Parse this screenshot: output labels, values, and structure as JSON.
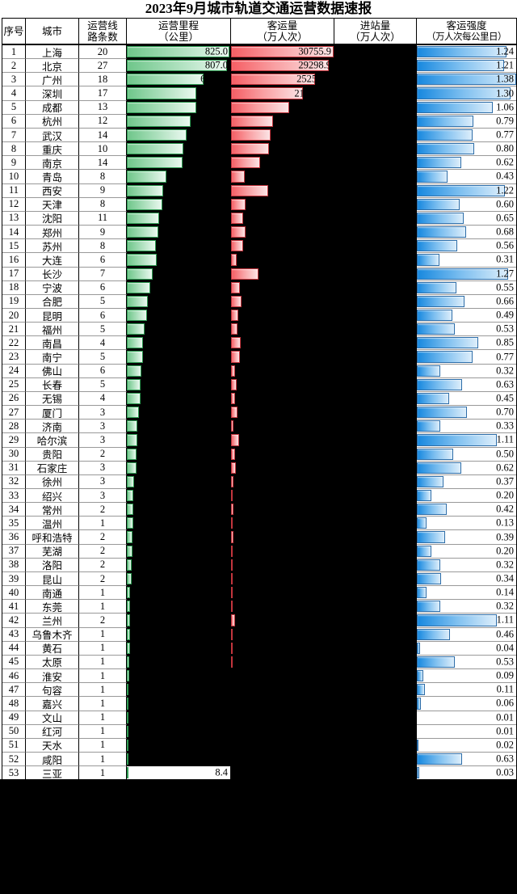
{
  "title": "2023年9月城市轨道交通运营数据速报",
  "columns": [
    {
      "l1": "序号",
      "l2": ""
    },
    {
      "l1": "城市",
      "l2": ""
    },
    {
      "l1": "运营线",
      "l2": "路条数"
    },
    {
      "l1": "运营里程",
      "l2": "（公里）"
    },
    {
      "l1": "客运量",
      "l2": "（万人次）"
    },
    {
      "l1": "进站量",
      "l2": "（万人次）"
    },
    {
      "l1": "客运强度",
      "l2": "（万人次每公里日）"
    }
  ],
  "colors": {
    "green_bar": "#6fc68a",
    "green_border": "#2e9b52",
    "red_bar": "#f55e64",
    "red_border": "#c2353d",
    "blue_bar": "#1788df",
    "blue_border": "#2d6da8",
    "blackout": "#000000",
    "gridline": "#999999"
  },
  "chart_data": {
    "type": "table",
    "title": "2023年9月城市轨道交通运营数据速报",
    "notes_layout": "in-cell data bars; bar lengths are percent of column width; entries column and unused bar areas are blacked out",
    "bar_full_scale": {
      "mileage_label_at_full": "825.0",
      "passengers_label_at_full": "30755.9",
      "intensity_max": 1.38
    },
    "rows": [
      {
        "no": "1",
        "city": "上海",
        "lines": "20",
        "m": 99,
        "ml": "825.0",
        "mlp": "edge",
        "p": 100,
        "pl": "30755.9",
        "plp": "edge",
        "i": "1.24"
      },
      {
        "no": "2",
        "city": "北京",
        "lines": "27",
        "m": 97,
        "ml": "807.0",
        "mlp": "edge",
        "p": 95,
        "pl": "29298.9",
        "plp": "edge",
        "i": "1.21"
      },
      {
        "no": "3",
        "city": "广州",
        "lines": "18",
        "m": 74.5,
        "ml": "6",
        "mlp": "bar",
        "p": 82,
        "pl": "2525",
        "plp": "bar",
        "i": "1.38"
      },
      {
        "no": "4",
        "city": "深圳",
        "lines": "17",
        "m": 67,
        "p": 70,
        "pl": "21",
        "plp": "bar",
        "i": "1.30"
      },
      {
        "no": "5",
        "city": "成都",
        "lines": "13",
        "m": 66.8,
        "p": 57,
        "i": "1.06"
      },
      {
        "no": "6",
        "city": "杭州",
        "lines": "12",
        "m": 61.9,
        "p": 41,
        "i": "0.79"
      },
      {
        "no": "7",
        "city": "武汉",
        "lines": "14",
        "m": 58,
        "p": 38.5,
        "i": "0.77"
      },
      {
        "no": "8",
        "city": "重庆",
        "lines": "10",
        "m": 54.5,
        "p": 37,
        "i": "0.80"
      },
      {
        "no": "9",
        "city": "南京",
        "lines": "14",
        "m": 53.7,
        "p": 28.5,
        "i": "0.62"
      },
      {
        "no": "10",
        "city": "青岛",
        "lines": "8",
        "m": 38,
        "p": 13.7,
        "i": "0.43"
      },
      {
        "no": "11",
        "city": "西安",
        "lines": "9",
        "m": 35.4,
        "p": 36,
        "i": "1.22"
      },
      {
        "no": "12",
        "city": "天津",
        "lines": "8",
        "m": 34.4,
        "p": 14.5,
        "i": "0.60"
      },
      {
        "no": "13",
        "city": "沈阳",
        "lines": "11",
        "m": 31.6,
        "p": 12,
        "i": "0.65"
      },
      {
        "no": "14",
        "city": "郑州",
        "lines": "9",
        "m": 30.6,
        "p": 14.5,
        "i": "0.68"
      },
      {
        "no": "15",
        "city": "苏州",
        "lines": "8",
        "m": 28,
        "p": 11.5,
        "i": "0.56"
      },
      {
        "no": "16",
        "city": "大连",
        "lines": "6",
        "m": 29,
        "p": 5.3,
        "i": "0.31"
      },
      {
        "no": "17",
        "city": "长沙",
        "lines": "7",
        "m": 25.2,
        "p": 27,
        "i": "1.27"
      },
      {
        "no": "18",
        "city": "宁波",
        "lines": "6",
        "m": 22.4,
        "p": 8.5,
        "i": "0.55"
      },
      {
        "no": "19",
        "city": "合肥",
        "lines": "5",
        "m": 20.6,
        "p": 10.3,
        "i": "0.66"
      },
      {
        "no": "20",
        "city": "昆明",
        "lines": "6",
        "m": 19.9,
        "p": 7,
        "i": "0.49"
      },
      {
        "no": "21",
        "city": "福州",
        "lines": "5",
        "m": 17.4,
        "p": 6.3,
        "i": "0.53"
      },
      {
        "no": "22",
        "city": "南昌",
        "lines": "4",
        "m": 15.5,
        "p": 9.4,
        "i": "0.85"
      },
      {
        "no": "23",
        "city": "南宁",
        "lines": "5",
        "m": 15.4,
        "p": 8.3,
        "i": "0.77"
      },
      {
        "no": "24",
        "city": "佛山",
        "lines": "6",
        "m": 14,
        "p": 3.8,
        "i": "0.32"
      },
      {
        "no": "25",
        "city": "长春",
        "lines": "5",
        "m": 13,
        "p": 5.9,
        "i": "0.63"
      },
      {
        "no": "26",
        "city": "无锡",
        "lines": "4",
        "m": 13.3,
        "p": 4.3,
        "i": "0.45"
      },
      {
        "no": "27",
        "city": "厦门",
        "lines": "3",
        "m": 12,
        "p": 6,
        "i": "0.70"
      },
      {
        "no": "28",
        "city": "济南",
        "lines": "3",
        "m": 10.4,
        "p": 2.6,
        "i": "0.33"
      },
      {
        "no": "29",
        "city": "哈尔滨",
        "lines": "3",
        "m": 9.8,
        "p": 7.9,
        "i": "1.11"
      },
      {
        "no": "30",
        "city": "贵阳",
        "lines": "2",
        "m": 9.4,
        "p": 3.7,
        "i": "0.50"
      },
      {
        "no": "31",
        "city": "石家庄",
        "lines": "3",
        "m": 9.2,
        "p": 4.5,
        "i": "0.62"
      },
      {
        "no": "32",
        "city": "徐州",
        "lines": "3",
        "m": 7.4,
        "p": 2.5,
        "i": "0.37"
      },
      {
        "no": "33",
        "city": "绍兴",
        "lines": "3",
        "m": 6.4,
        "p": 1.2,
        "i": "0.20"
      },
      {
        "no": "34",
        "city": "常州",
        "lines": "2",
        "m": 6.3,
        "p": 2.2,
        "i": "0.42"
      },
      {
        "no": "35",
        "city": "温州",
        "lines": "1",
        "m": 6,
        "p": 0.8,
        "i": "0.13"
      },
      {
        "no": "36",
        "city": "呼和浩特",
        "lines": "2",
        "m": 5.7,
        "p": 2,
        "i": "0.39"
      },
      {
        "no": "37",
        "city": "芜湖",
        "lines": "2",
        "m": 5.1,
        "p": 1.1,
        "i": "0.20"
      },
      {
        "no": "38",
        "city": "洛阳",
        "lines": "2",
        "m": 5,
        "p": 1.5,
        "i": "0.32"
      },
      {
        "no": "39",
        "city": "昆山",
        "lines": "2",
        "m": 4.3,
        "p": 1.3,
        "i": "0.34"
      },
      {
        "no": "40",
        "city": "南通",
        "lines": "1",
        "m": 3.3,
        "p": 0.7,
        "i": "0.14"
      },
      {
        "no": "41",
        "city": "东莞",
        "lines": "1",
        "m": 3.5,
        "p": 1.2,
        "i": "0.32"
      },
      {
        "no": "42",
        "city": "兰州",
        "lines": "2",
        "m": 3.1,
        "p": 3.6,
        "i": "1.11"
      },
      {
        "no": "43",
        "city": "乌鲁木齐",
        "lines": "1",
        "m": 2.9,
        "p": 1.3,
        "i": "0.46"
      },
      {
        "no": "44",
        "city": "黄石",
        "lines": "1",
        "m": 2.8,
        "p": 0.3,
        "i": "0.04"
      },
      {
        "no": "45",
        "city": "太原",
        "lines": "1",
        "m": 2.4,
        "p": 1.2,
        "i": "0.53"
      },
      {
        "no": "46",
        "city": "淮安",
        "lines": "1",
        "m": 2.1,
        "p": 0,
        "i": "0.09"
      },
      {
        "no": "47",
        "city": "句容",
        "lines": "1",
        "m": 1.9,
        "p": 0,
        "i": "0.11"
      },
      {
        "no": "48",
        "city": "嘉兴",
        "lines": "1",
        "m": 1.7,
        "p": 0,
        "i": "0.06"
      },
      {
        "no": "49",
        "city": "文山",
        "lines": "1",
        "m": 1.5,
        "p": 0,
        "i": "0.01"
      },
      {
        "no": "50",
        "city": "红河",
        "lines": "1",
        "m": 1.5,
        "p": 0,
        "i": "0.01"
      },
      {
        "no": "51",
        "city": "天水",
        "lines": "1",
        "m": 1.4,
        "p": 0,
        "i": "0.02"
      },
      {
        "no": "52",
        "city": "咸阳",
        "lines": "1",
        "m": 1.2,
        "p": 0,
        "i": "0.63"
      },
      {
        "no": "53",
        "city": "三亚",
        "lines": "1",
        "m": 1.0,
        "ml": "8.4",
        "mlp": "edge",
        "mbg": "white",
        "p": 0,
        "i": "0.03"
      }
    ]
  }
}
